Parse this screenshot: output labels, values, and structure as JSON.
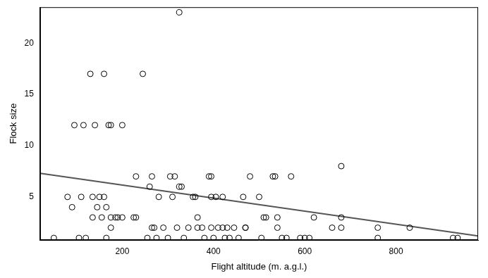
{
  "chart_data": {
    "type": "scatter",
    "xlabel": "Flight altitude (m. a.g.l.)",
    "ylabel": "Flock size",
    "xlim": [
      20,
      980
    ],
    "xticks": [
      200,
      400,
      600,
      800
    ],
    "ylim": [
      0.8,
      23.5
    ],
    "yticks": [
      5,
      10,
      15,
      20
    ],
    "grid": false,
    "series": [
      {
        "type": "scatter",
        "marker": "open_circle",
        "color": "#000000",
        "x": [
          50,
          80,
          90,
          95,
          105,
          110,
          115,
          120,
          130,
          135,
          135,
          140,
          145,
          150,
          155,
          160,
          160,
          165,
          165,
          170,
          175,
          175,
          175,
          185,
          190,
          200,
          200,
          225,
          230,
          230,
          245,
          255,
          260,
          265,
          265,
          270,
          275,
          280,
          290,
          300,
          305,
          310,
          315,
          320,
          325,
          325,
          330,
          335,
          345,
          355,
          360,
          365,
          365,
          375,
          380,
          390,
          395,
          395,
          395,
          400,
          405,
          410,
          420,
          420,
          425,
          430,
          435,
          445,
          455,
          465,
          470,
          470,
          480,
          500,
          505,
          510,
          515,
          530,
          535,
          540,
          540,
          550,
          560,
          570,
          590,
          600,
          610,
          620,
          660,
          680,
          680,
          680,
          760,
          760,
          830,
          925,
          935
        ],
        "values": [
          1,
          5,
          4,
          12,
          1,
          5,
          12,
          1,
          17,
          3,
          5,
          12,
          4,
          5,
          3,
          5,
          17,
          4,
          1,
          12,
          12,
          2,
          3,
          3,
          3,
          12,
          3,
          3,
          7,
          3,
          17,
          1,
          6,
          7,
          2,
          2,
          1,
          5,
          2,
          1,
          7,
          5,
          7,
          2,
          23,
          6,
          6,
          1,
          2,
          5,
          5,
          3,
          2,
          2,
          1,
          7,
          7,
          5,
          2,
          1,
          5,
          2,
          2,
          5,
          1,
          2,
          1,
          2,
          1,
          5,
          2,
          2,
          7,
          5,
          1,
          3,
          3,
          7,
          7,
          3,
          2,
          1,
          1,
          7,
          1,
          1,
          1,
          3,
          2,
          8,
          3,
          2,
          2,
          1,
          2,
          1,
          1
        ]
      },
      {
        "type": "line",
        "line_style": "solid",
        "color": "#555555",
        "x": [
          20,
          980
        ],
        "values": [
          7.3,
          1.2
        ]
      }
    ]
  }
}
